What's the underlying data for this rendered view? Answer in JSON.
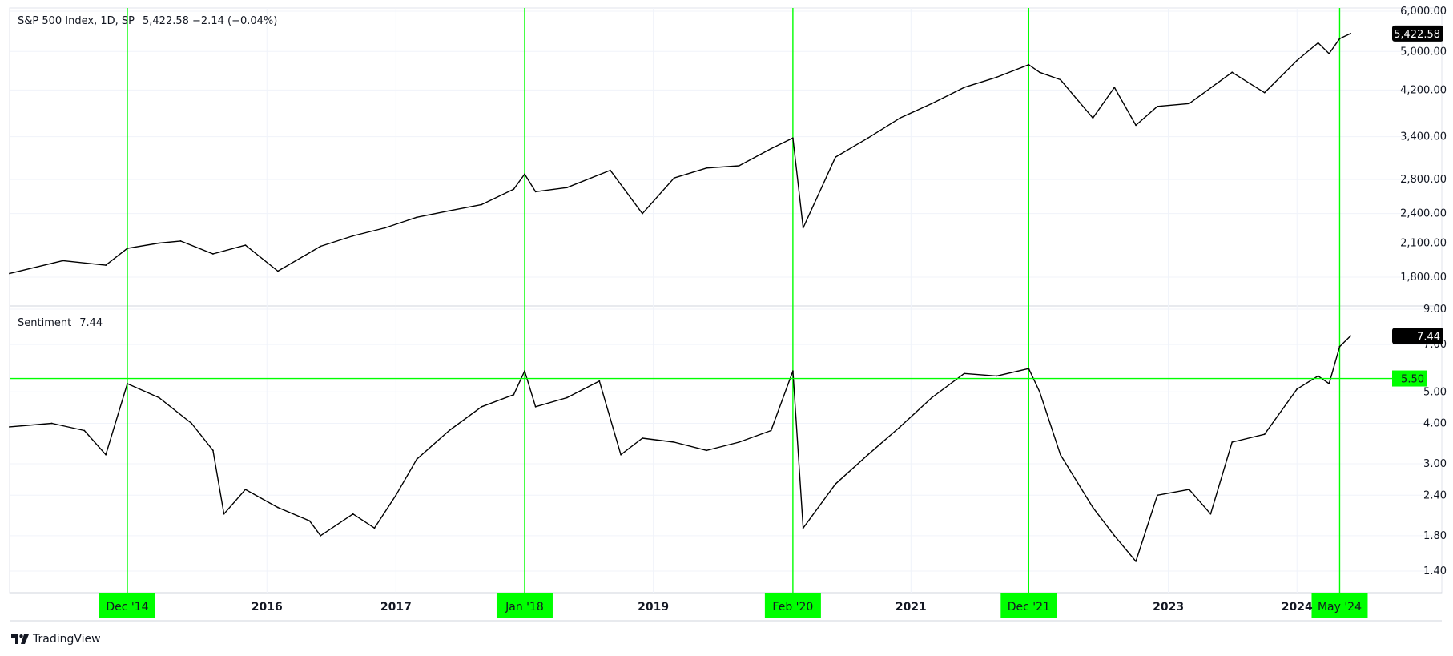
{
  "logo_text": "TradingView",
  "colors": {
    "line": "#000000",
    "grid": "#f0f3fa",
    "marker": "#00ff00",
    "marker_fill": "#00ff00",
    "text": "#131722",
    "last_bg": "#000000"
  },
  "chart_data": [
    {
      "type": "line",
      "title": "S&P 500 Index, 1D, SP",
      "legend_value": "5,422.58  −2.14 (−0.04%)",
      "y_scale": "log",
      "ylim": [
        1650,
        6000
      ],
      "y_ticks": [
        1800,
        2100,
        2400,
        2800,
        3400,
        4200,
        5000,
        6000
      ],
      "y_tick_labels": [
        "1,800.00",
        "2,100.00",
        "2,400.00",
        "2,800.00",
        "3,400.00",
        "4,200.00",
        "5,000.00",
        "6,000.00"
      ],
      "last_value_label": "5,422.58",
      "last_value": 5422.58,
      "x": [
        "2014-01",
        "2014-06",
        "2014-10",
        "2014-12",
        "2015-03",
        "2015-05",
        "2015-08",
        "2015-11",
        "2016-02",
        "2016-06",
        "2016-09",
        "2016-12",
        "2017-03",
        "2017-06",
        "2017-09",
        "2017-12",
        "2018-01",
        "2018-02",
        "2018-05",
        "2018-09",
        "2018-12",
        "2019-03",
        "2019-06",
        "2019-09",
        "2019-12",
        "2020-02",
        "2020-03",
        "2020-06",
        "2020-09",
        "2020-12",
        "2021-03",
        "2021-06",
        "2021-09",
        "2021-12",
        "2022-01",
        "2022-03",
        "2022-06",
        "2022-08",
        "2022-10",
        "2022-12",
        "2023-03",
        "2023-07",
        "2023-10",
        "2024-01",
        "2024-03",
        "2024-04",
        "2024-05",
        "2024-06"
      ],
      "values": [
        1830,
        1940,
        1900,
        2050,
        2100,
        2120,
        2000,
        2080,
        1850,
        2070,
        2170,
        2250,
        2360,
        2430,
        2500,
        2680,
        2870,
        2650,
        2700,
        2920,
        2400,
        2820,
        2950,
        2980,
        3220,
        3380,
        2250,
        3100,
        3380,
        3700,
        3950,
        4250,
        4450,
        4710,
        4550,
        4400,
        3700,
        4250,
        3580,
        3900,
        3950,
        4550,
        4150,
        4800,
        5200,
        4950,
        5300,
        5422.58
      ]
    },
    {
      "type": "line",
      "title": "Sentiment",
      "legend_value": "7.44",
      "y_scale": "log",
      "ylim": [
        1.3,
        9.0
      ],
      "y_ticks": [
        1.4,
        1.8,
        2.4,
        3.0,
        4.0,
        5.0,
        7.0,
        9.0
      ],
      "y_tick_labels": [
        "1.40",
        "1.80",
        "2.40",
        "3.00",
        "4.00",
        "5.00",
        "7.00",
        "9.00"
      ],
      "last_value_label": "7.44",
      "last_value": 7.44,
      "threshold": 5.5,
      "threshold_label": "5.50",
      "x": [
        "2014-01",
        "2014-05",
        "2014-08",
        "2014-10",
        "2014-12",
        "2015-03",
        "2015-06",
        "2015-08",
        "2015-09",
        "2015-11",
        "2016-02",
        "2016-05",
        "2016-06",
        "2016-09",
        "2016-11",
        "2017-01",
        "2017-03",
        "2017-06",
        "2017-09",
        "2017-12",
        "2018-01",
        "2018-02",
        "2018-05",
        "2018-08",
        "2018-10",
        "2018-12",
        "2019-03",
        "2019-06",
        "2019-09",
        "2019-12",
        "2020-02",
        "2020-03",
        "2020-06",
        "2020-09",
        "2020-12",
        "2021-03",
        "2021-06",
        "2021-09",
        "2021-12",
        "2022-01",
        "2022-03",
        "2022-06",
        "2022-08",
        "2022-10",
        "2022-12",
        "2023-03",
        "2023-05",
        "2023-07",
        "2023-10",
        "2024-01",
        "2024-03",
        "2024-04",
        "2024-05",
        "2024-06"
      ],
      "values": [
        3.9,
        4.0,
        3.8,
        3.2,
        5.3,
        4.8,
        4.0,
        3.3,
        2.1,
        2.5,
        2.2,
        2.0,
        1.8,
        2.1,
        1.9,
        2.4,
        3.1,
        3.8,
        4.5,
        4.9,
        5.8,
        4.5,
        4.8,
        5.4,
        3.2,
        3.6,
        3.5,
        3.3,
        3.5,
        3.8,
        5.8,
        1.9,
        2.6,
        3.2,
        3.9,
        4.8,
        5.7,
        5.6,
        5.9,
        5.0,
        3.2,
        2.2,
        1.8,
        1.5,
        2.4,
        2.5,
        2.1,
        3.5,
        3.7,
        5.1,
        5.6,
        5.3,
        6.9,
        7.44
      ]
    }
  ],
  "x_axis": {
    "year_labels": [
      {
        "label": "2016",
        "date": "2016-01"
      },
      {
        "label": "2017",
        "date": "2017-01"
      },
      {
        "label": "2019",
        "date": "2019-01"
      },
      {
        "label": "2021",
        "date": "2021-01"
      },
      {
        "label": "2023",
        "date": "2023-01"
      },
      {
        "label": "2024",
        "date": "2024-01"
      }
    ],
    "markers": [
      {
        "label": "Dec '14",
        "date": "2014-12"
      },
      {
        "label": "Jan '18",
        "date": "2018-01"
      },
      {
        "label": "Feb '20",
        "date": "2020-02"
      },
      {
        "label": "Dec '21",
        "date": "2021-12"
      },
      {
        "label": "May '24",
        "date": "2024-05"
      }
    ]
  }
}
